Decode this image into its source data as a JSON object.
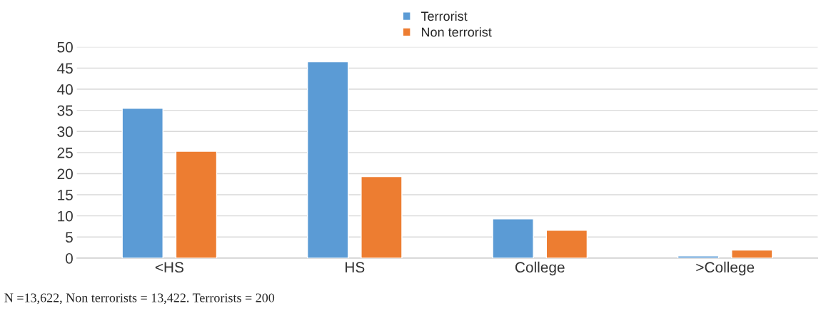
{
  "chart_data": {
    "type": "bar",
    "categories": [
      "<HS",
      "HS",
      "College",
      ">College"
    ],
    "series": [
      {
        "name": "Terrorist",
        "color": "#5b9bd5",
        "values": [
          35.5,
          46.5,
          9.3,
          0.5
        ]
      },
      {
        "name": "Non terrorist",
        "color": "#ed7d31",
        "values": [
          25.3,
          19.3,
          6.6,
          1.9
        ]
      }
    ],
    "ylim": [
      0,
      50
    ],
    "yticks": [
      0,
      5,
      10,
      15,
      20,
      25,
      30,
      35,
      40,
      45,
      50
    ],
    "grid": "y",
    "legend": "top",
    "annotations": [
      "N =13,622, Non terrorists = 13,422. Terrorists = 200"
    ]
  }
}
